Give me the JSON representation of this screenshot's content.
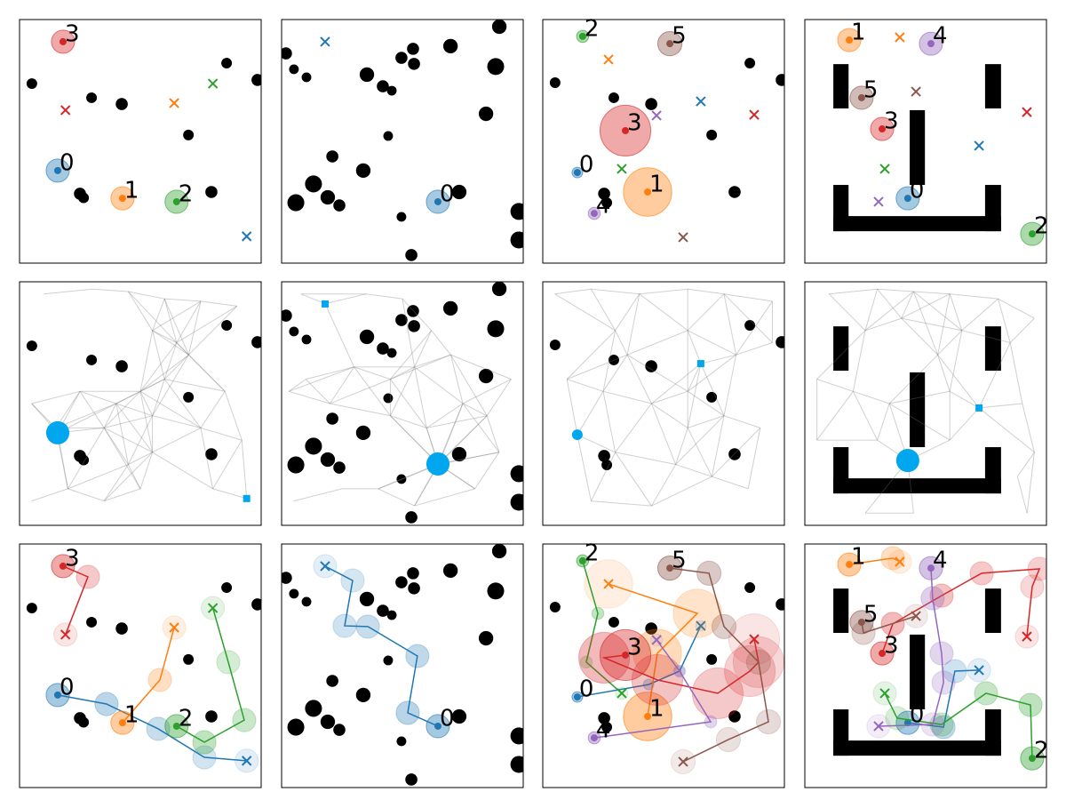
{
  "chart_data": {
    "type": "multi-robot-roadmap",
    "xlim": [
      0,
      100
    ],
    "ylim": [
      0,
      100
    ],
    "highlight_color": "#00a6ee",
    "environments": [
      {
        "obstacles": [
          {
            "x": 5.1,
            "y": 73.7,
            "r": 2.2
          },
          {
            "x": 29.8,
            "y": 67.9,
            "r": 2.2
          },
          {
            "x": 42.3,
            "y": 65.3,
            "r": 2.5
          },
          {
            "x": 69.9,
            "y": 52.6,
            "r": 2.2
          },
          {
            "x": 85.7,
            "y": 82.1,
            "r": 2.2
          },
          {
            "x": 98.5,
            "y": 75.2,
            "r": 2.5
          },
          {
            "x": 25,
            "y": 28.5,
            "r": 2.5
          },
          {
            "x": 26.5,
            "y": 26.8,
            "r": 2.2
          },
          {
            "x": 79.4,
            "y": 29.2,
            "r": 2.5
          }
        ],
        "walls": [],
        "roadmap_agent": 0,
        "roadmap": {
          "x": [
            10,
            30,
            45,
            60,
            75,
            90,
            55,
            65,
            60,
            50,
            40,
            25,
            5,
            15,
            35,
            55,
            55,
            50,
            35,
            20,
            5,
            75,
            85,
            92,
            80,
            94,
            15.8,
            45,
            70
          ],
          "y": [
            95,
            97,
            96,
            93,
            92,
            90,
            80,
            75,
            60,
            55,
            50,
            55,
            50,
            40,
            40,
            45,
            30,
            15,
            10,
            15,
            10,
            40,
            55,
            35,
            15,
            11,
            38,
            25,
            70
          ]
        },
        "agents": [
          {
            "label": "0",
            "color": "#1f77b4",
            "x": 15.8,
            "y": 38,
            "r": 4.8,
            "goal_x": 94,
            "goal_y": 11,
            "path_x": [
              36,
              57.4,
              76.5
            ],
            "path_y": [
              34.3,
              24.1,
              12.4
            ]
          },
          {
            "label": "1",
            "color": "#ff7f0e",
            "x": 42.6,
            "y": 26.6,
            "r": 4.8,
            "goal_x": 64,
            "goal_y": 65.7,
            "path_x": [
              58.1
            ],
            "path_y": [
              44.2
            ]
          },
          {
            "label": "2",
            "color": "#2ca02c",
            "x": 65,
            "y": 25.2,
            "r": 4.8,
            "goal_x": 80,
            "goal_y": 73.7,
            "path_x": [
              76.5,
              93,
              86.4
            ],
            "path_y": [
              18.6,
              27.7,
              51.5
            ]
          },
          {
            "label": "3",
            "color": "#d62728",
            "x": 18,
            "y": 90.9,
            "r": 4.8,
            "goal_x": 19,
            "goal_y": 62.8,
            "path_x": [
              28.3
            ],
            "path_y": [
              86.5
            ]
          }
        ]
      },
      {
        "obstacles": [
          {
            "x": 1.8,
            "y": 86.1,
            "r": 2.5
          },
          {
            "x": 5.1,
            "y": 79.6,
            "r": 2
          },
          {
            "x": 10.3,
            "y": 76.3,
            "r": 2
          },
          {
            "x": 35.3,
            "y": 77.4,
            "r": 3
          },
          {
            "x": 41.9,
            "y": 72.6,
            "r": 2.5
          },
          {
            "x": 45.6,
            "y": 70.8,
            "r": 2
          },
          {
            "x": 44.1,
            "y": 52.2,
            "r": 2
          },
          {
            "x": 49.6,
            "y": 84.3,
            "r": 2.5
          },
          {
            "x": 54.4,
            "y": 88,
            "r": 2.5
          },
          {
            "x": 54.8,
            "y": 81.8,
            "r": 2.5
          },
          {
            "x": 69.9,
            "y": 89.1,
            "r": 3
          },
          {
            "x": 84.6,
            "y": 61.3,
            "r": 3
          },
          {
            "x": 88.6,
            "y": 80.7,
            "r": 3.5
          },
          {
            "x": 90.1,
            "y": 97.1,
            "r": 3
          },
          {
            "x": 21,
            "y": 43.8,
            "r": 2.5
          },
          {
            "x": 33.8,
            "y": 38,
            "r": 3
          },
          {
            "x": 13.2,
            "y": 32.5,
            "r": 3.5
          },
          {
            "x": 19.1,
            "y": 27,
            "r": 3
          },
          {
            "x": 23.9,
            "y": 23.7,
            "r": 2.5
          },
          {
            "x": 5.9,
            "y": 24.8,
            "r": 3.5
          },
          {
            "x": 49.6,
            "y": 19,
            "r": 2
          },
          {
            "x": 73.5,
            "y": 29.2,
            "r": 3
          },
          {
            "x": 98.2,
            "y": 21.2,
            "r": 3.5
          },
          {
            "x": 98.2,
            "y": 9.5,
            "r": 3.5
          },
          {
            "x": 53.7,
            "y": 3.3,
            "r": 2.5
          }
        ],
        "walls": [],
        "roadmap_agent": 0,
        "roadmap": {
          "x": [
            8,
            18,
            35,
            50,
            62,
            55,
            45,
            30,
            10,
            3,
            20,
            45,
            60,
            65,
            75,
            85,
            95,
            90,
            80,
            55,
            40,
            25,
            5,
            64.7,
            70
          ],
          "y": [
            95,
            91,
            95,
            93,
            80,
            65,
            60,
            65,
            60,
            55,
            50,
            45,
            40,
            25,
            50,
            45,
            60,
            30,
            15,
            8,
            15,
            15,
            10,
            25.2,
            70
          ]
        },
        "agents": [
          {
            "label": "0",
            "color": "#1f77b4",
            "x": 64.7,
            "y": 25.2,
            "r": 4.8,
            "goal_x": 18,
            "goal_y": 90.9,
            "path_x": [
              52.2,
              56.2,
              35.7,
              26.1,
              29.4
            ],
            "path_y": [
              30.7,
              54,
              66.1,
              66.4,
              85
            ]
          }
        ]
      },
      {
        "obstacles": [
          {
            "x": 5.1,
            "y": 74.1,
            "r": 2.2
          },
          {
            "x": 29.4,
            "y": 67.9,
            "r": 2.2
          },
          {
            "x": 44.9,
            "y": 65.3,
            "r": 2.5
          },
          {
            "x": 69.9,
            "y": 52.6,
            "r": 2.2
          },
          {
            "x": 85.7,
            "y": 82.1,
            "r": 2.2
          },
          {
            "x": 98.9,
            "y": 75.2,
            "r": 2.5
          },
          {
            "x": 25.4,
            "y": 28.5,
            "r": 2.5
          },
          {
            "x": 79.4,
            "y": 29.2,
            "r": 2.5
          },
          {
            "x": 26.5,
            "y": 24.8,
            "r": 2.2
          }
        ],
        "walls": [],
        "roadmap_agent": 0,
        "roadmap": {
          "x": [
            5,
            20,
            40,
            60,
            75,
            95,
            30,
            60,
            65.4,
            80,
            95,
            10,
            25,
            45,
            60,
            75,
            90,
            14.3,
            30,
            55,
            70,
            85,
            20,
            45,
            60,
            35
          ],
          "y": [
            95,
            97,
            95,
            97,
            95,
            92,
            80,
            80,
            66.4,
            70,
            75,
            60,
            55,
            50,
            55,
            45,
            40,
            37.2,
            30,
            25,
            20,
            15,
            10,
            8,
            40,
            70
          ]
        },
        "agents": [
          {
            "label": "0",
            "color": "#1f77b4",
            "x": 14.3,
            "y": 37.2,
            "r": 2.2,
            "goal_x": 65.4,
            "goal_y": 66.4,
            "path_x": [
              43.8,
              56.6
            ],
            "path_y": [
              42.3,
              47.8
            ]
          },
          {
            "label": "1",
            "color": "#ff7f0e",
            "x": 43.4,
            "y": 29.2,
            "r": 10,
            "goal_x": 27.2,
            "goal_y": 83.6,
            "path_x": [
              47.4,
              64
            ],
            "path_y": [
              55.1,
              71.5
            ]
          },
          {
            "label": "2",
            "color": "#2ca02c",
            "x": 16.5,
            "y": 93.1,
            "r": 2.5,
            "goal_x": 32.7,
            "goal_y": 38.7,
            "path_x": [
              22.8,
              18
            ],
            "path_y": [
              71.5,
              51.5
            ]
          },
          {
            "label": "3",
            "color": "#d62728",
            "x": 34.2,
            "y": 54.4,
            "r": 10.5,
            "goal_x": 87.5,
            "goal_y": 60.9,
            "path_x": [
              25.4,
              47.4,
              72.4,
              85.7,
              89.3
            ],
            "path_y": [
              53.3,
              44.2,
              38.7,
              47.8,
              51.5
            ]
          },
          {
            "label": "4",
            "color": "#9467bd",
            "x": 21.3,
            "y": 20.4,
            "r": 2.5,
            "goal_x": 47.1,
            "goal_y": 60.6,
            "path_x": [
              69.5,
              56.6
            ],
            "path_y": [
              27,
              47.8
            ]
          },
          {
            "label": "5",
            "color": "#8c564b",
            "x": 52.6,
            "y": 90.1,
            "r": 5,
            "goal_x": 58.1,
            "goal_y": 10.6,
            "path_x": [
              68.8,
              75,
              89.3,
              93.4,
              76.8
            ],
            "path_y": [
              88,
              66.1,
              51.5,
              27,
              19.7
            ]
          }
        ]
      },
      {
        "obstacles": [],
        "walls": [
          {
            "x": 11.8,
            "y": 63.5,
            "w": 6.3,
            "h": 18.2
          },
          {
            "x": 74.6,
            "y": 63.5,
            "w": 6.6,
            "h": 18.2
          },
          {
            "x": 43.4,
            "y": 32.1,
            "w": 6.3,
            "h": 30.7
          },
          {
            "x": 11.8,
            "y": 13.1,
            "w": 6.3,
            "h": 19
          },
          {
            "x": 74.6,
            "y": 13.1,
            "w": 6.6,
            "h": 19
          },
          {
            "x": 11.8,
            "y": 13.1,
            "w": 69.4,
            "h": 6.2
          }
        ],
        "roadmap_agent": 0,
        "roadmap": {
          "x": [
            10,
            30,
            45,
            60,
            80,
            95,
            25,
            40,
            55,
            65,
            85,
            5,
            20,
            35,
            60,
            72.1,
            90,
            95,
            88,
            42.6,
            30,
            5,
            60,
            45,
            25,
            92
          ],
          "y": [
            95,
            97,
            96,
            95,
            93,
            85,
            80,
            85,
            70,
            80,
            75,
            60,
            55,
            50,
            55,
            48.2,
            50,
            30,
            20,
            26.6,
            35,
            35,
            35,
            5,
            5,
            5
          ]
        },
        "agents": [
          {
            "label": "0",
            "color": "#1f77b4",
            "x": 42.6,
            "y": 26.6,
            "r": 4.8,
            "goal_x": 72.1,
            "goal_y": 48.2,
            "path_x": [
              57.4,
              62.1
            ],
            "path_y": [
              24.8,
              47.8
            ]
          },
          {
            "label": "1",
            "color": "#ff7f0e",
            "x": 18.4,
            "y": 91.6,
            "r": 4.8,
            "goal_x": 39.3,
            "goal_y": 92.7,
            "path_x": [
              36.4
            ],
            "path_y": [
              94.2
            ]
          },
          {
            "label": "2",
            "color": "#2ca02c",
            "x": 94.1,
            "y": 12,
            "r": 4.8,
            "goal_x": 33.1,
            "goal_y": 38.7,
            "path_x": [
              93.4,
              75,
              56.6,
              38.2
            ],
            "path_y": [
              33.9,
              38.7,
              25.9,
              28.5
            ]
          },
          {
            "label": "3",
            "color": "#d62728",
            "x": 32,
            "y": 55.1,
            "r": 4.8,
            "goal_x": 91.9,
            "goal_y": 62,
            "path_x": [
              36.4,
              56.6,
              73.2,
              97.1,
              94.1
            ],
            "path_y": [
              67.2,
              78.8,
              88,
              89.8,
              82.5
            ]
          },
          {
            "label": "4",
            "color": "#9467bd",
            "x": 52.2,
            "y": 90.1,
            "r": 4.8,
            "goal_x": 30.5,
            "goal_y": 25.2,
            "path_x": [
              52.9,
              56.6,
              57.4,
              52.9
            ],
            "path_y": [
              77.7,
              55.1,
              43.1,
              25.9
            ]
          },
          {
            "label": "5",
            "color": "#8c564b",
            "x": 23.5,
            "y": 67.9,
            "r": 4.8,
            "goal_x": 46,
            "goal_y": 70.4,
            "path_x": [
              24.3
            ],
            "path_y": [
              63.5
            ]
          }
        ]
      }
    ]
  }
}
